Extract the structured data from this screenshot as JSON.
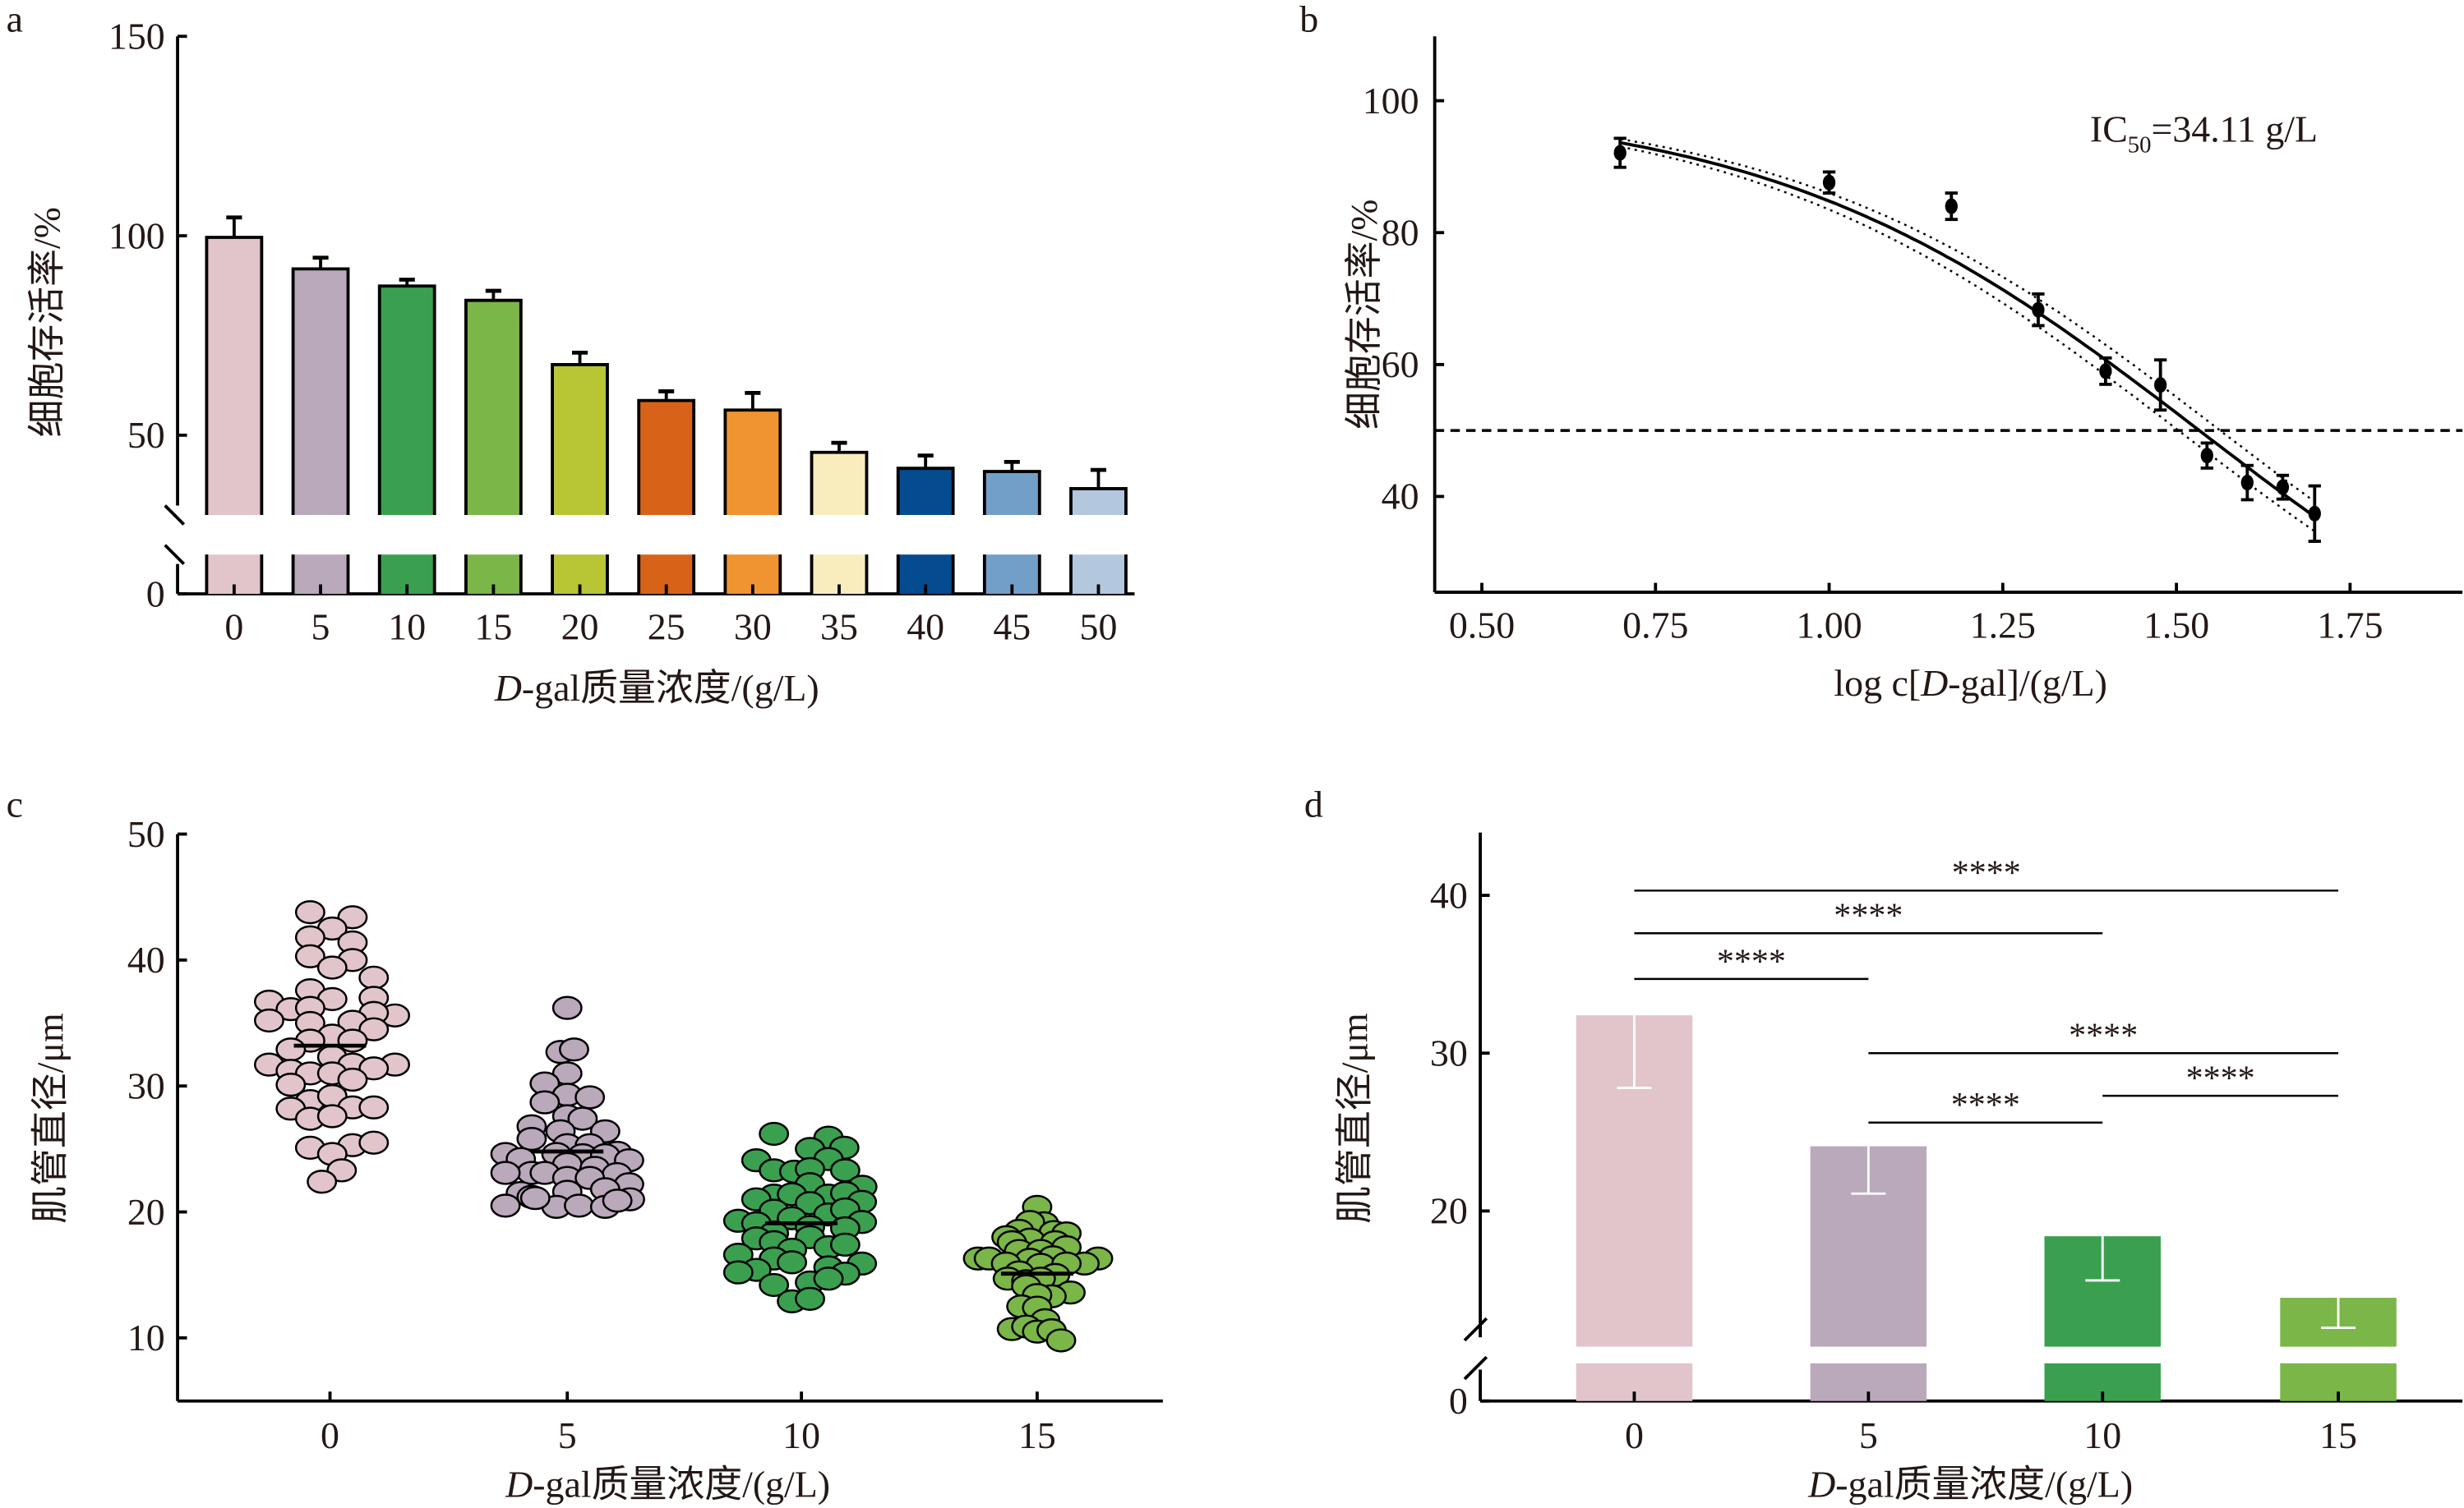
{
  "figure": {
    "panel_labels": [
      "a",
      "b",
      "c",
      "d"
    ]
  },
  "chart_data": [
    {
      "panel": "a",
      "type": "bar",
      "title": "",
      "xlabel_italic": "D",
      "xlabel_rest": "-gal质量浓度/(g/L)",
      "ylabel": "细胞存活率/%",
      "categories": [
        "0",
        "5",
        "10",
        "15",
        "20",
        "25",
        "30",
        "35",
        "40",
        "45",
        "50"
      ],
      "values": [
        99.6,
        91.7,
        87.4,
        83.8,
        67.7,
        58.7,
        56.3,
        45.7,
        41.7,
        40.9,
        36.6
      ],
      "errors": [
        5.0,
        2.8,
        1.6,
        2.4,
        3.0,
        2.3,
        4.3,
        2.4,
        3.2,
        2.4,
        4.7
      ],
      "colors": [
        "#e2c5cb",
        "#b9a9bb",
        "#3aa050",
        "#7ab648",
        "#b8c535",
        "#d86318",
        "#f09331",
        "#faedbd",
        "#044b8f",
        "#729fc8",
        "#b3c8df"
      ],
      "yticks": [
        0,
        50,
        100,
        150
      ],
      "ytick_labels": [
        "0",
        "50",
        "100",
        "150"
      ],
      "ylim": [
        0,
        150
      ],
      "axis_break": [
        0,
        30
      ],
      "grid": false
    },
    {
      "panel": "b",
      "type": "scatter",
      "title": "",
      "xlabel_prefix": "log c[",
      "xlabel_italic": "D",
      "xlabel_suffix": "-gal]/(g/L)",
      "ylabel": "细胞存活率/%",
      "annotation": {
        "main": "IC",
        "sub": "50",
        "rest": "=34.11 g/L"
      },
      "x": [
        0.699,
        1.0,
        1.176,
        1.301,
        1.398,
        1.477,
        1.544,
        1.602,
        1.653,
        1.699
      ],
      "y": [
        92.1,
        87.6,
        84.0,
        68.3,
        59.0,
        56.9,
        46.2,
        42.1,
        41.4,
        37.4
      ],
      "errors": [
        2.2,
        1.6,
        2.0,
        2.4,
        2.0,
        3.8,
        1.9,
        2.6,
        1.8,
        4.2
      ],
      "fit": {
        "model": "four-parameter logistic",
        "ic50_log": 1.533,
        "top": 100,
        "bottom": 0,
        "hill": 1.4,
        "x_range": [
          0.7,
          1.7
        ]
      },
      "reference_line_y": 50,
      "xticks": [
        0.5,
        0.75,
        1.0,
        1.25,
        1.5,
        1.75
      ],
      "xtick_labels": [
        "0.50",
        "0.75",
        "1.00",
        "1.25",
        "1.50",
        "1.75"
      ],
      "yticks": [
        40,
        60,
        80,
        100
      ],
      "ytick_labels": [
        "40",
        "60",
        "80",
        "100"
      ],
      "xlim": [
        0.43,
        1.9
      ],
      "ylim": [
        25.5,
        110
      ],
      "grid": false
    },
    {
      "panel": "c",
      "type": "scatter",
      "title": "",
      "xlabel_italic": "D",
      "xlabel_rest": "-gal质量浓度/(g/L)",
      "ylabel": "肌管直径/μm",
      "categories": [
        "0",
        "5",
        "10",
        "15"
      ],
      "colors": [
        "#e2c5cb",
        "#b9a9bb",
        "#3aa050",
        "#7ab648"
      ],
      "means": [
        33.2,
        24.8,
        19.1,
        15.1
      ],
      "groups": [
        {
          "name": "0",
          "points": [
            [
              -0.44,
              43.8
            ],
            [
              0.5,
              43.4
            ],
            [
              0.05,
              42.5
            ],
            [
              -0.44,
              41.8
            ],
            [
              0.5,
              41.4
            ],
            [
              -0.44,
              40.3
            ],
            [
              0.5,
              40.0
            ],
            [
              0.05,
              39.4
            ],
            [
              0.97,
              38.6
            ],
            [
              -0.44,
              37.6
            ],
            [
              0.97,
              37.0
            ],
            [
              -1.35,
              36.7
            ],
            [
              0.05,
              36.9
            ],
            [
              -0.87,
              36.1
            ],
            [
              -0.44,
              36.2
            ],
            [
              1.44,
              35.6
            ],
            [
              0.97,
              35.8
            ],
            [
              -1.35,
              35.2
            ],
            [
              0.5,
              35.1
            ],
            [
              -0.44,
              35.0
            ],
            [
              0.97,
              34.5
            ],
            [
              0.05,
              34.0
            ],
            [
              -0.44,
              33.6
            ],
            [
              0.5,
              33.6
            ],
            [
              -0.87,
              32.9
            ],
            [
              0.05,
              32.3
            ],
            [
              -1.35,
              31.7
            ],
            [
              1.44,
              31.7
            ],
            [
              0.5,
              31.7
            ],
            [
              -0.87,
              31.2
            ],
            [
              0.97,
              31.4
            ],
            [
              -0.44,
              31.0
            ],
            [
              0.05,
              31.0
            ],
            [
              0.5,
              30.5
            ],
            [
              -0.87,
              30.1
            ],
            [
              -0.44,
              28.8
            ],
            [
              0.05,
              29.2
            ],
            [
              -0.87,
              28.2
            ],
            [
              0.5,
              28.3
            ],
            [
              0.97,
              28.3
            ],
            [
              -0.44,
              27.4
            ],
            [
              0.05,
              27.6
            ],
            [
              -0.44,
              25.1
            ],
            [
              0.5,
              25.3
            ],
            [
              0.97,
              25.5
            ],
            [
              0.05,
              24.6
            ],
            [
              0.26,
              23.3
            ],
            [
              -0.18,
              22.4
            ]
          ]
        },
        {
          "name": "5",
          "points": [
            [
              0.0,
              36.2
            ],
            [
              -0.15,
              32.7
            ],
            [
              0.15,
              32.9
            ],
            [
              0.0,
              31.0
            ],
            [
              -0.5,
              30.2
            ],
            [
              0.0,
              29.3
            ],
            [
              0.5,
              29.1
            ],
            [
              -0.5,
              28.7
            ],
            [
              0.0,
              27.6
            ],
            [
              0.34,
              27.4
            ],
            [
              -0.79,
              26.8
            ],
            [
              -0.15,
              26.4
            ],
            [
              0.84,
              26.4
            ],
            [
              -0.79,
              25.8
            ],
            [
              0.0,
              25.3
            ],
            [
              0.5,
              25.3
            ],
            [
              -1.37,
              24.6
            ],
            [
              1.11,
              24.7
            ],
            [
              -1.03,
              24.2
            ],
            [
              -0.24,
              24.6
            ],
            [
              0.34,
              24.5
            ],
            [
              0.84,
              24.5
            ],
            [
              1.37,
              24.1
            ],
            [
              -0.79,
              23.1
            ],
            [
              0.0,
              23.8
            ],
            [
              0.61,
              23.5
            ],
            [
              -1.37,
              23.1
            ],
            [
              -0.5,
              23.1
            ],
            [
              1.1,
              23.0
            ],
            [
              0.0,
              22.7
            ],
            [
              -1.03,
              21.5
            ],
            [
              0.5,
              22.7
            ],
            [
              1.37,
              22.2
            ],
            [
              -0.79,
              21.2
            ],
            [
              0.0,
              21.6
            ],
            [
              0.84,
              21.8
            ],
            [
              -1.37,
              20.5
            ],
            [
              -0.24,
              20.4
            ],
            [
              0.26,
              20.5
            ],
            [
              0.84,
              20.4
            ],
            [
              1.39,
              21.0
            ],
            [
              1.11,
              20.9
            ],
            [
              -0.71,
              21.1
            ]
          ]
        },
        {
          "name": "10",
          "points": [
            [
              -0.61,
              26.2
            ],
            [
              0.6,
              25.9
            ],
            [
              0.19,
              25.0
            ],
            [
              0.95,
              25.1
            ],
            [
              -1.0,
              24.1
            ],
            [
              0.6,
              24.2
            ],
            [
              -0.61,
              23.3
            ],
            [
              -0.16,
              23.2
            ],
            [
              0.19,
              23.4
            ],
            [
              0.97,
              23.3
            ],
            [
              0.19,
              22.2
            ],
            [
              1.35,
              22.0
            ],
            [
              -0.61,
              21.3
            ],
            [
              -1.0,
              21.0
            ],
            [
              -0.21,
              21.4
            ],
            [
              0.6,
              21.3
            ],
            [
              0.97,
              21.5
            ],
            [
              1.34,
              20.8
            ],
            [
              0.19,
              20.7
            ],
            [
              -1.4,
              19.3
            ],
            [
              -0.61,
              20.1
            ],
            [
              -0.21,
              19.5
            ],
            [
              0.6,
              19.8
            ],
            [
              0.97,
              20.2
            ],
            [
              1.34,
              19.2
            ],
            [
              -1.0,
              19.1
            ],
            [
              0.19,
              18.8
            ],
            [
              -0.61,
              18.3
            ],
            [
              0.97,
              18.7
            ],
            [
              -1.0,
              17.9
            ],
            [
              0.19,
              18.0
            ],
            [
              -0.61,
              17.6
            ],
            [
              0.6,
              17.2
            ],
            [
              0.97,
              17.4
            ],
            [
              -1.4,
              16.6
            ],
            [
              -0.21,
              17.0
            ],
            [
              -0.61,
              16.3
            ],
            [
              0.6,
              15.6
            ],
            [
              1.34,
              15.9
            ],
            [
              -1.0,
              15.4
            ],
            [
              -0.21,
              16.0
            ],
            [
              -1.4,
              15.2
            ],
            [
              0.97,
              15.1
            ],
            [
              -0.61,
              14.2
            ],
            [
              0.19,
              14.4
            ],
            [
              0.6,
              14.7
            ],
            [
              -0.21,
              12.9
            ],
            [
              0.19,
              13.1
            ]
          ]
        },
        {
          "name": "15",
          "points": [
            [
              0.0,
              20.4
            ],
            [
              0.15,
              19.1
            ],
            [
              -0.16,
              19.2
            ],
            [
              -0.4,
              18.5
            ],
            [
              0.37,
              18.4
            ],
            [
              -0.68,
              18.0
            ],
            [
              0.65,
              18.3
            ],
            [
              -0.16,
              17.8
            ],
            [
              0.4,
              17.6
            ],
            [
              -0.56,
              17.6
            ],
            [
              0.65,
              17.2
            ],
            [
              -0.4,
              16.9
            ],
            [
              0.08,
              16.9
            ],
            [
              0.35,
              16.4
            ],
            [
              -1.31,
              16.3
            ],
            [
              -1.07,
              16.3
            ],
            [
              1.35,
              16.3
            ],
            [
              -0.16,
              16.2
            ],
            [
              1.05,
              15.9
            ],
            [
              -0.69,
              15.9
            ],
            [
              0.08,
              15.8
            ],
            [
              0.65,
              15.9
            ],
            [
              -0.4,
              15.2
            ],
            [
              -0.65,
              14.7
            ],
            [
              0.4,
              15.0
            ],
            [
              -0.24,
              14.5
            ],
            [
              0.08,
              14.7
            ],
            [
              0.74,
              13.6
            ],
            [
              0.32,
              13.3
            ],
            [
              -0.24,
              14.1
            ],
            [
              0.0,
              13.4
            ],
            [
              -0.35,
              12.5
            ],
            [
              0.0,
              12.4
            ],
            [
              0.18,
              11.4
            ],
            [
              -0.56,
              10.7
            ],
            [
              -0.24,
              10.9
            ],
            [
              0.0,
              10.5
            ],
            [
              0.32,
              10.6
            ],
            [
              0.53,
              9.8
            ]
          ]
        }
      ],
      "yticks": [
        10,
        20,
        30,
        40,
        50
      ],
      "ytick_labels": [
        "10",
        "20",
        "30",
        "40",
        "50"
      ],
      "ylim": [
        5,
        50
      ],
      "grid": false
    },
    {
      "panel": "d",
      "type": "bar",
      "title": "",
      "xlabel_italic": "D",
      "xlabel_rest": "-gal质量浓度/(g/L)",
      "ylabel": "肌管直径/μm",
      "categories": [
        "0",
        "5",
        "10",
        "15"
      ],
      "values": [
        32.4,
        24.1,
        18.4,
        14.5
      ],
      "errors": [
        4.6,
        3.0,
        2.8,
        1.9
      ],
      "error_direction": "down",
      "colors": [
        "#e2c5cb",
        "#b9a9bb",
        "#3aa050",
        "#7ab648"
      ],
      "significance": [
        {
          "from": "0",
          "to": "15",
          "level": 40.3,
          "label": "****"
        },
        {
          "from": "0",
          "to": "10",
          "level": 37.6,
          "label": "****"
        },
        {
          "from": "0",
          "to": "5",
          "level": 34.7,
          "label": "****"
        },
        {
          "from": "5",
          "to": "15",
          "level": 30.0,
          "label": "****"
        },
        {
          "from": "10",
          "to": "15",
          "level": 27.3,
          "label": "****"
        },
        {
          "from": "5",
          "to": "10",
          "level": 25.6,
          "label": "****"
        }
      ],
      "yticks": [
        0,
        20,
        30,
        40
      ],
      "ytick_labels": [
        "0",
        "20",
        "30",
        "40"
      ],
      "ylim": [
        0,
        44
      ],
      "axis_break": [
        0,
        12
      ],
      "grid": false
    }
  ]
}
